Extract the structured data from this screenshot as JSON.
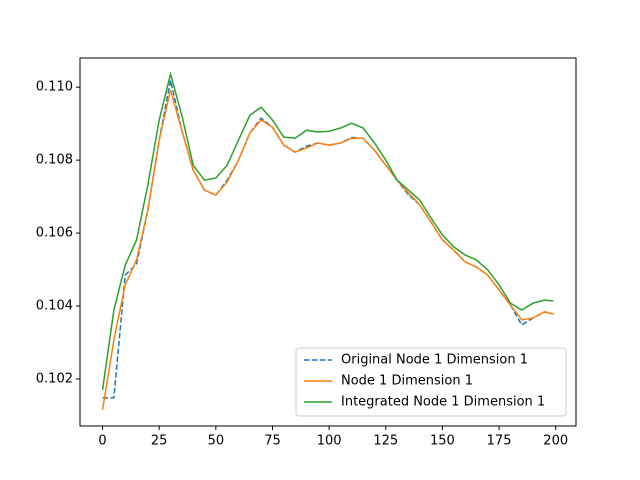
{
  "chart_data": {
    "type": "line",
    "x": [
      0,
      5,
      10,
      15,
      20,
      25,
      30,
      35,
      40,
      45,
      50,
      55,
      60,
      65,
      70,
      75,
      80,
      85,
      90,
      95,
      100,
      105,
      110,
      115,
      120,
      125,
      130,
      135,
      140,
      145,
      150,
      155,
      160,
      165,
      170,
      175,
      180,
      185,
      190,
      195,
      199
    ],
    "series": [
      {
        "name": "Original Node 1 Dimension 1",
        "color": "#1f77b4",
        "dash": true,
        "values": [
          0.10148,
          0.10148,
          0.10485,
          0.10515,
          0.10663,
          0.10855,
          0.11019,
          0.10882,
          0.10773,
          0.10718,
          0.10704,
          0.10745,
          0.108,
          0.10874,
          0.10915,
          0.1089,
          0.10841,
          0.10822,
          0.10838,
          0.10847,
          0.10841,
          0.10847,
          0.10862,
          0.1086,
          0.10827,
          0.10786,
          0.10745,
          0.10705,
          0.10677,
          0.1063,
          0.10581,
          0.10553,
          0.10521,
          0.10507,
          0.10485,
          0.10444,
          0.10403,
          0.10348,
          0.10367,
          0.10384,
          0.10378
        ]
      },
      {
        "name": "Node 1 Dimension 1",
        "color": "#ff7f0e",
        "dash": false,
        "values": [
          0.10115,
          0.10307,
          0.10458,
          0.10526,
          0.10663,
          0.10855,
          0.10992,
          0.10882,
          0.10773,
          0.10718,
          0.10704,
          0.1074,
          0.108,
          0.10874,
          0.1091,
          0.1089,
          0.10841,
          0.10822,
          0.10833,
          0.10847,
          0.10841,
          0.10847,
          0.1086,
          0.1086,
          0.10827,
          0.10786,
          0.10745,
          0.1071,
          0.10677,
          0.1063,
          0.10581,
          0.10553,
          0.10521,
          0.10507,
          0.10485,
          0.10444,
          0.10403,
          0.10362,
          0.10367,
          0.10384,
          0.10378
        ]
      },
      {
        "name": "Integrated Node 1 Dimension 1",
        "color": "#2ca02c",
        "dash": false,
        "values": [
          0.1017,
          0.10389,
          0.10512,
          0.10581,
          0.10732,
          0.1091,
          0.11036,
          0.10923,
          0.10786,
          0.10745,
          0.10751,
          0.10786,
          0.10855,
          0.10923,
          0.10945,
          0.1091,
          0.10863,
          0.1086,
          0.10882,
          0.10877,
          0.10879,
          0.10888,
          0.10901,
          0.10888,
          0.10847,
          0.108,
          0.10745,
          0.10718,
          0.1069,
          0.10641,
          0.10595,
          0.10562,
          0.1054,
          0.10526,
          0.10499,
          0.10458,
          0.10408,
          0.10389,
          0.10408,
          0.10416,
          0.10414
        ]
      }
    ],
    "xlim": [
      -9.95,
      208.95
    ],
    "ylim": [
      0.10071,
      0.1108
    ],
    "xticks": [
      0,
      25,
      50,
      75,
      100,
      125,
      150,
      175,
      200
    ],
    "yticks": [
      0.102,
      0.104,
      0.106,
      0.108,
      {
        "value": 0.11,
        "label": "0.110"
      }
    ],
    "legend": "lower right"
  }
}
